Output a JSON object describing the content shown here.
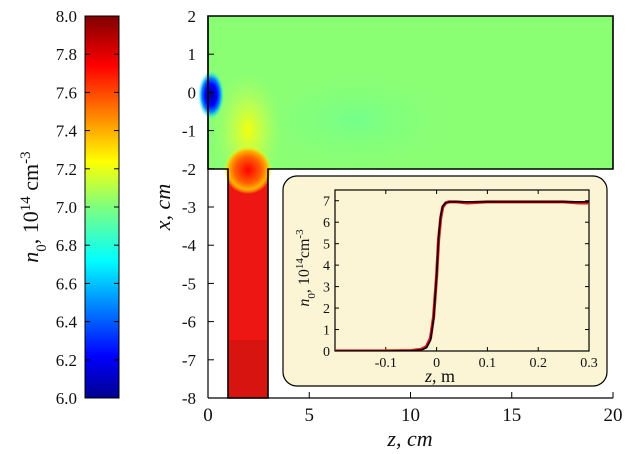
{
  "chart_data": [
    {
      "type": "heatmap",
      "description": "",
      "xlabel": "z, cm",
      "ylabel": "x, cm",
      "xlim": [
        0,
        20
      ],
      "ylim": [
        -8,
        2
      ],
      "x_ticks": [
        "0",
        "5",
        "10",
        "15",
        "20"
      ],
      "y_ticks": [
        "2",
        "1",
        "0",
        "-1",
        "-2",
        "-3",
        "-4",
        "-5",
        "-6",
        "-7",
        "-8"
      ],
      "colorbar": {
        "label_main": "n",
        "label_sub": "0",
        "label_rest": ", 10",
        "label_sup1": "14",
        "label_unit": " cm",
        "label_sup2": "-3",
        "range": [
          6.0,
          8.0
        ],
        "ticks": [
          "8.0",
          "7.8",
          "7.6",
          "7.4",
          "7.2",
          "7.0",
          "6.8",
          "6.6",
          "6.4",
          "6.2",
          "6.0"
        ],
        "colormap": "jet"
      },
      "regions": [
        {
          "name": "main-channel",
          "z": [
            0,
            20
          ],
          "x": [
            -2,
            2
          ],
          "value": 7.0
        },
        {
          "name": "side-inlet",
          "z": [
            1,
            3
          ],
          "x": [
            -8,
            -2
          ],
          "value": 7.95
        },
        {
          "name": "low-density-spot",
          "z": [
            0,
            0.3
          ],
          "x": [
            -0.5,
            0.5
          ],
          "value": 6.05
        }
      ]
    },
    {
      "type": "line",
      "xlabel": "z, m",
      "ylabel_main": "n",
      "ylabel_sub": "0",
      "ylabel_rest": ", 10",
      "ylabel_sup1": "14",
      "ylabel_unit": "cm",
      "ylabel_sup2": "-3",
      "xlim": [
        -0.2,
        0.3
      ],
      "ylim": [
        0,
        7.5
      ],
      "x_ticks": [
        "-0.1",
        "0",
        "0.1",
        "0.2",
        "0.3"
      ],
      "y_ticks": [
        "7",
        "6",
        "5",
        "4",
        "3",
        "2",
        "1",
        "0"
      ],
      "series": [
        {
          "color": "#e0181c",
          "x": [
            -0.2,
            -0.15,
            -0.1,
            -0.05,
            -0.03,
            -0.02,
            -0.012,
            -0.006,
            0.0,
            0.004,
            0.008,
            0.012,
            0.018,
            0.025,
            0.04,
            0.06,
            0.1,
            0.15,
            0.2,
            0.25,
            0.28,
            0.3
          ],
          "y": [
            0.0,
            0.0,
            0.0,
            0.02,
            0.08,
            0.2,
            0.6,
            1.6,
            3.5,
            5.2,
            6.2,
            6.7,
            6.9,
            6.95,
            6.95,
            6.9,
            6.95,
            6.95,
            6.95,
            6.95,
            6.9,
            6.9
          ]
        },
        {
          "color": "#000000",
          "x": [
            -0.2,
            -0.15,
            -0.1,
            -0.05,
            -0.03,
            -0.02,
            -0.012,
            -0.006,
            0.0,
            0.004,
            0.008,
            0.012,
            0.018,
            0.025,
            0.04,
            0.06,
            0.1,
            0.15,
            0.2,
            0.25,
            0.28,
            0.3
          ],
          "y": [
            0.0,
            0.0,
            0.0,
            0.01,
            0.05,
            0.15,
            0.5,
            1.5,
            3.5,
            5.3,
            6.3,
            6.75,
            6.9,
            6.95,
            6.95,
            6.95,
            6.95,
            6.95,
            6.95,
            6.95,
            6.95,
            6.95
          ]
        }
      ]
    }
  ]
}
